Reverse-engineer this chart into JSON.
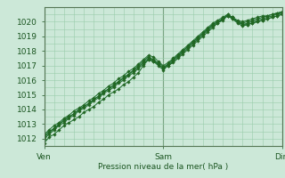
{
  "bg_color": "#cce8d8",
  "grid_color": "#99ccaa",
  "line_color": "#1a6b2a",
  "marker_color": "#226622",
  "xlabel": "Pression niveau de la mer( hPa )",
  "xlabel_color": "#1a5520",
  "tick_color": "#1a5520",
  "axis_color": "#557755",
  "ylim": [
    1011.5,
    1021.0
  ],
  "yticks": [
    1012,
    1013,
    1014,
    1015,
    1016,
    1017,
    1018,
    1019,
    1020
  ],
  "xtick_labels": [
    "Ven",
    "Sam",
    "Dim"
  ],
  "xtick_positions": [
    0,
    144,
    288
  ],
  "x_total": 288,
  "series": [
    [
      0,
      1011.7,
      6,
      1012.1,
      12,
      1012.3,
      18,
      1012.6,
      24,
      1012.9,
      30,
      1013.1,
      36,
      1013.3,
      42,
      1013.5,
      48,
      1013.8,
      54,
      1014.0,
      60,
      1014.2,
      66,
      1014.5,
      72,
      1014.7,
      78,
      1015.0,
      84,
      1015.2,
      90,
      1015.4,
      96,
      1015.7,
      102,
      1015.9,
      108,
      1016.2,
      114,
      1016.5,
      120,
      1017.0,
      126,
      1017.4,
      132,
      1017.3,
      138,
      1017.1,
      144,
      1016.8,
      150,
      1017.0,
      156,
      1017.2,
      162,
      1017.5,
      168,
      1017.8,
      174,
      1018.1,
      180,
      1018.4,
      186,
      1018.7,
      192,
      1019.0,
      198,
      1019.3,
      204,
      1019.6,
      210,
      1019.9,
      216,
      1020.2,
      222,
      1020.5,
      228,
      1020.3,
      234,
      1020.0,
      240,
      1019.8,
      246,
      1019.8,
      252,
      1019.9,
      258,
      1020.0,
      264,
      1020.1,
      270,
      1020.2,
      276,
      1020.3,
      282,
      1020.4,
      288,
      1020.5
    ],
    [
      0,
      1012.2,
      6,
      1012.5,
      12,
      1012.7,
      18,
      1013.0,
      24,
      1013.3,
      30,
      1013.5,
      36,
      1013.7,
      42,
      1014.0,
      48,
      1014.2,
      54,
      1014.4,
      60,
      1014.7,
      66,
      1014.9,
      72,
      1015.2,
      78,
      1015.4,
      84,
      1015.6,
      90,
      1015.9,
      96,
      1016.1,
      102,
      1016.4,
      108,
      1016.6,
      114,
      1016.9,
      120,
      1017.2,
      126,
      1017.5,
      132,
      1017.4,
      138,
      1017.1,
      144,
      1016.8,
      150,
      1017.1,
      156,
      1017.4,
      162,
      1017.7,
      168,
      1018.0,
      174,
      1018.3,
      180,
      1018.6,
      186,
      1018.9,
      192,
      1019.2,
      198,
      1019.5,
      204,
      1019.8,
      210,
      1020.0,
      216,
      1020.2,
      222,
      1020.4,
      228,
      1020.2,
      234,
      1020.0,
      240,
      1019.9,
      246,
      1020.0,
      252,
      1020.1,
      258,
      1020.2,
      264,
      1020.3,
      270,
      1020.4,
      276,
      1020.5,
      282,
      1020.6,
      288,
      1020.7
    ],
    [
      0,
      1012.0,
      6,
      1012.3,
      12,
      1012.6,
      18,
      1012.9,
      24,
      1013.1,
      30,
      1013.4,
      36,
      1013.6,
      42,
      1013.9,
      48,
      1014.1,
      54,
      1014.3,
      60,
      1014.6,
      66,
      1014.8,
      72,
      1015.1,
      78,
      1015.3,
      84,
      1015.5,
      90,
      1015.8,
      96,
      1016.0,
      102,
      1016.3,
      108,
      1016.5,
      114,
      1016.8,
      120,
      1017.1,
      126,
      1017.4,
      132,
      1017.3,
      138,
      1017.0,
      144,
      1016.7,
      150,
      1017.0,
      156,
      1017.3,
      162,
      1017.6,
      168,
      1017.9,
      174,
      1018.2,
      180,
      1018.5,
      186,
      1018.8,
      192,
      1019.1,
      198,
      1019.4,
      204,
      1019.7,
      210,
      1019.9,
      216,
      1020.1,
      222,
      1020.4,
      228,
      1020.2,
      234,
      1019.9,
      240,
      1019.7,
      246,
      1019.8,
      252,
      1019.9,
      258,
      1020.0,
      264,
      1020.1,
      270,
      1020.2,
      276,
      1020.3,
      282,
      1020.4,
      288,
      1020.5
    ],
    [
      0,
      1012.3,
      6,
      1012.6,
      12,
      1012.9,
      18,
      1013.1,
      24,
      1013.4,
      30,
      1013.6,
      36,
      1013.9,
      42,
      1014.1,
      48,
      1014.3,
      54,
      1014.6,
      60,
      1014.8,
      66,
      1015.1,
      72,
      1015.3,
      78,
      1015.6,
      84,
      1015.8,
      90,
      1016.1,
      96,
      1016.3,
      102,
      1016.6,
      108,
      1016.8,
      114,
      1017.1,
      120,
      1017.4,
      126,
      1017.7,
      132,
      1017.6,
      138,
      1017.3,
      144,
      1017.0,
      150,
      1017.2,
      156,
      1017.5,
      162,
      1017.8,
      168,
      1018.1,
      174,
      1018.4,
      180,
      1018.7,
      186,
      1019.0,
      192,
      1019.3,
      198,
      1019.6,
      204,
      1019.9,
      210,
      1020.1,
      216,
      1020.3,
      222,
      1020.5,
      228,
      1020.3,
      234,
      1020.1,
      240,
      1020.0,
      246,
      1020.1,
      252,
      1020.2,
      258,
      1020.3,
      264,
      1020.4,
      270,
      1020.4,
      276,
      1020.5,
      282,
      1020.6,
      288,
      1020.6
    ],
    [
      0,
      1012.1,
      6,
      1012.4,
      12,
      1012.7,
      18,
      1013.0,
      24,
      1013.2,
      30,
      1013.5,
      36,
      1013.7,
      42,
      1014.0,
      48,
      1014.2,
      54,
      1014.4,
      60,
      1014.7,
      66,
      1014.9,
      72,
      1015.2,
      78,
      1015.4,
      84,
      1015.7,
      90,
      1015.9,
      96,
      1016.2,
      102,
      1016.4,
      108,
      1016.7,
      114,
      1017.0,
      120,
      1017.3,
      126,
      1017.6,
      132,
      1017.4,
      138,
      1017.2,
      144,
      1016.9,
      150,
      1017.1,
      156,
      1017.4,
      162,
      1017.7,
      168,
      1018.0,
      174,
      1018.3,
      180,
      1018.6,
      186,
      1018.9,
      192,
      1019.2,
      198,
      1019.5,
      204,
      1019.8,
      210,
      1020.0,
      216,
      1020.2,
      222,
      1020.4,
      228,
      1020.3,
      234,
      1020.0,
      240,
      1019.8,
      246,
      1019.9,
      252,
      1020.0,
      258,
      1020.1,
      264,
      1020.2,
      270,
      1020.3,
      276,
      1020.4,
      282,
      1020.5,
      288,
      1020.6
    ]
  ]
}
